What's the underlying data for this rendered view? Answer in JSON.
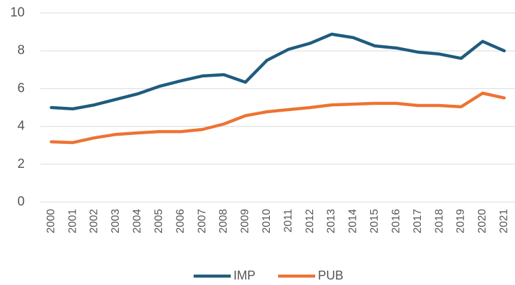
{
  "chart_data": {
    "type": "line",
    "categories": [
      "2000",
      "2001",
      "2002",
      "2003",
      "2004",
      "2005",
      "2006",
      "2007",
      "2008",
      "2009",
      "2010",
      "2011",
      "2012",
      "2013",
      "2014",
      "2015",
      "2016",
      "2017",
      "2018",
      "2019",
      "2020",
      "2021"
    ],
    "series": [
      {
        "name": "IMP",
        "color": "#1f5c7e",
        "values": [
          5.0,
          4.93,
          5.14,
          5.43,
          5.72,
          6.12,
          6.41,
          6.67,
          6.74,
          6.34,
          7.5,
          8.08,
          8.4,
          8.88,
          8.7,
          8.26,
          8.15,
          7.93,
          7.83,
          7.6,
          8.5,
          8.0
        ]
      },
      {
        "name": "PUB",
        "color": "#ed7332",
        "values": [
          3.19,
          3.15,
          3.4,
          3.58,
          3.66,
          3.73,
          3.73,
          3.84,
          4.13,
          4.57,
          4.78,
          4.89,
          5.0,
          5.14,
          5.18,
          5.22,
          5.22,
          5.11,
          5.11,
          5.04,
          5.76,
          5.51
        ]
      }
    ],
    "ylim": [
      0,
      10
    ],
    "yticks": [
      0,
      2,
      4,
      6,
      8,
      10
    ],
    "grid": true,
    "legend": "bottom"
  }
}
